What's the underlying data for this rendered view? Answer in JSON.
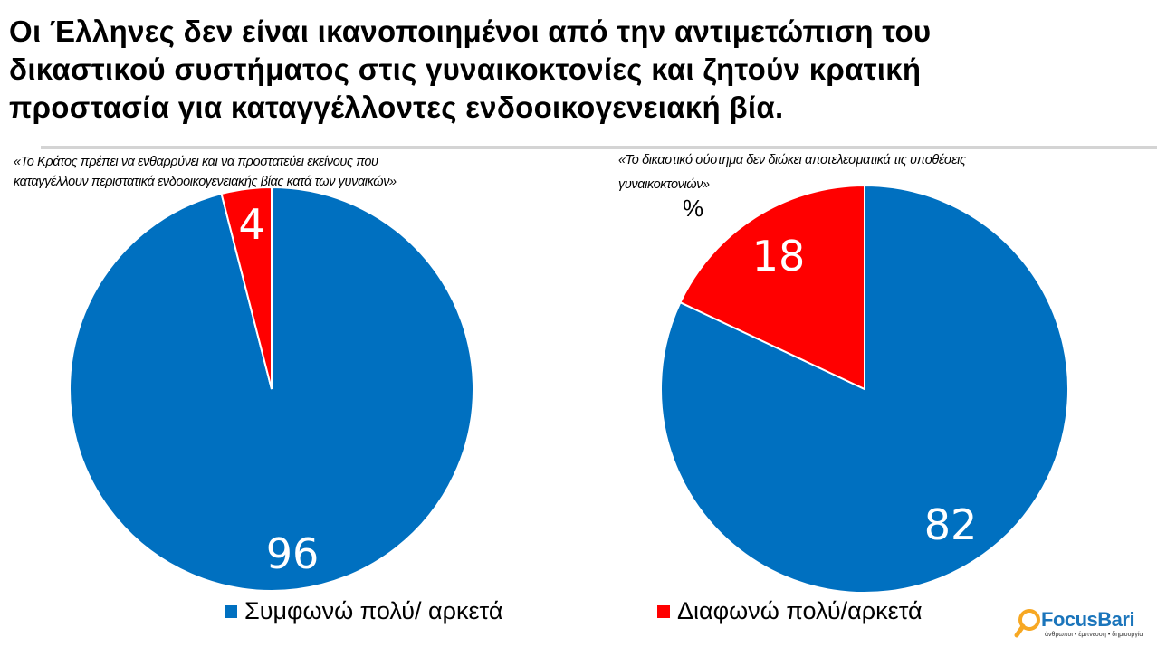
{
  "title": {
    "line1": "Οι Έλληνες δεν είναι ικανοποιημένοι από την αντιμετώπιση του",
    "line2": "δικαστικού συστήματος στις γυναικοκτονίες και ζητούν κρατική",
    "line3": "προστασία για καταγγέλλοντες ενδοοικογενειακή βία."
  },
  "unit_label": "%",
  "colors": {
    "agree": "#0070c0",
    "disagree": "#ff0000",
    "rule": "#d4d4d4"
  },
  "legend": {
    "agree": "Συμφωνώ πολύ/ αρκετά",
    "disagree": "Διαφωνώ πολύ/αρκετά"
  },
  "logo": {
    "brand": "FocusBari",
    "tagline": "άνθρωποι • έμπνευση • δημιουργία"
  },
  "chart_data": [
    {
      "type": "pie",
      "title": "«Το Κράτος πρέπει να ενθαρρύνει και να προστατεύει εκείνους που καταγγέλλουν περιστατικά ενδοοικογενειακής βίας κατά των γυναικών»",
      "title_line1": "«Το Κράτος πρέπει να ενθαρρύνει και να προστατεύει εκείνους που",
      "title_line2": "καταγγέλλουν περιστατικά ενδοοικογενειακής βίας κατά των γυναικών»",
      "categories": [
        "Συμφωνώ πολύ/ αρκετά",
        "Διαφωνώ πολύ/αρκετά"
      ],
      "values": [
        96,
        4
      ],
      "unit": "%",
      "legend_position": "bottom"
    },
    {
      "type": "pie",
      "title": "«Το δικαστικό σύστημα δεν διώκει αποτελεσματικά τις υποθέσεις γυναικοκτονιών»",
      "title_line1": "«Το δικαστικό σύστημα δεν διώκει αποτελεσματικά τις υποθέσεις",
      "title_line2": "γυναικοκτονιών»",
      "categories": [
        "Συμφωνώ πολύ/ αρκετά",
        "Διαφωνώ πολύ/αρκετά"
      ],
      "values": [
        82,
        18
      ],
      "unit": "%",
      "legend_position": "bottom"
    }
  ]
}
